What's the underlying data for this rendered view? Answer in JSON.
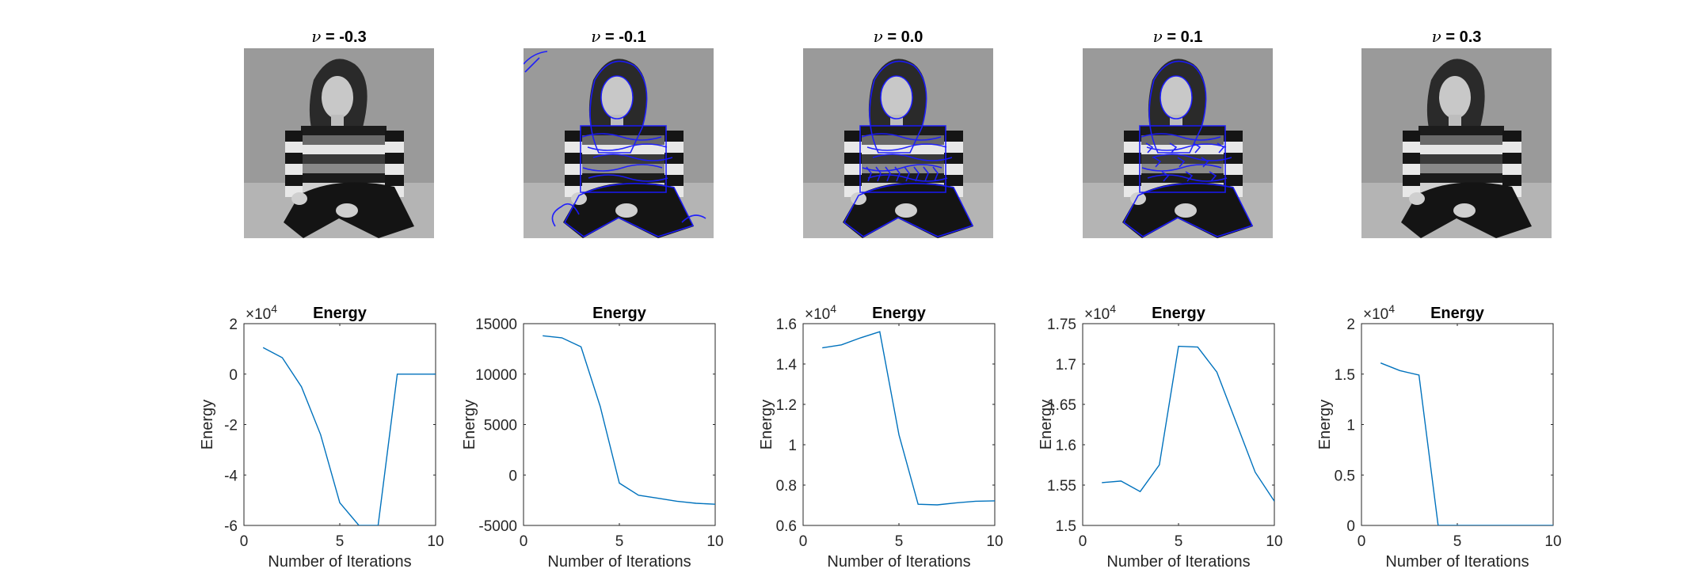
{
  "images": [
    {
      "nu_symbol": "ν",
      "label": " = -0.3"
    },
    {
      "nu_symbol": "ν",
      "label": " = -0.1"
    },
    {
      "nu_symbol": "ν",
      "label": " = 0.0"
    },
    {
      "nu_symbol": "ν",
      "label": " = 0.1"
    },
    {
      "nu_symbol": "ν",
      "label": " = 0.3"
    }
  ],
  "colors": {
    "line": "#0072BD",
    "contour": "#1a1aff",
    "axis": "#262626",
    "image_bg": "#9a9a9a"
  },
  "chart_data": [
    {
      "type": "line",
      "title": "Energy",
      "xlabel": "Number of Iterations",
      "ylabel": "Energy",
      "exponent": "×10",
      "exponent_power": "4",
      "xlim": [
        0,
        10
      ],
      "ylim": [
        -6,
        2
      ],
      "xticks": [
        0,
        5,
        10
      ],
      "yticks": [
        -6,
        -4,
        -2,
        0,
        2
      ],
      "ytick_labels": [
        "-6",
        "-4",
        "-2",
        "0",
        "2"
      ],
      "x": [
        1,
        2,
        3,
        4,
        5,
        6,
        7,
        8,
        9,
        10
      ],
      "values": [
        1.05,
        0.65,
        -0.5,
        -2.4,
        -5.1,
        -6.0,
        -6.0,
        0.0,
        0.0,
        0.0
      ]
    },
    {
      "type": "line",
      "title": "Energy",
      "xlabel": "Number of Iterations",
      "ylabel": "Energy",
      "exponent": "",
      "exponent_power": "",
      "xlim": [
        0,
        10
      ],
      "ylim": [
        -5000,
        15000
      ],
      "xticks": [
        0,
        5,
        10
      ],
      "yticks": [
        -5000,
        0,
        5000,
        10000,
        15000
      ],
      "ytick_labels": [
        "-5000",
        "0",
        "5000",
        "10000",
        "15000"
      ],
      "x": [
        1,
        2,
        3,
        4,
        5,
        6,
        7,
        8,
        9,
        10
      ],
      "values": [
        13800,
        13600,
        12700,
        6800,
        -800,
        -2000,
        -2300,
        -2600,
        -2800,
        -2900
      ]
    },
    {
      "type": "line",
      "title": "Energy",
      "xlabel": "Number of Iterations",
      "ylabel": "Energy",
      "exponent": "×10",
      "exponent_power": "4",
      "xlim": [
        0,
        10
      ],
      "ylim": [
        0.6,
        1.6
      ],
      "xticks": [
        0,
        5,
        10
      ],
      "yticks": [
        0.6,
        0.8,
        1.0,
        1.2,
        1.4,
        1.6
      ],
      "ytick_labels": [
        "0.6",
        "0.8",
        "1",
        "1.2",
        "1.4",
        "1.6"
      ],
      "x": [
        1,
        2,
        3,
        4,
        5,
        6,
        7,
        8,
        9,
        10
      ],
      "values": [
        1.48,
        1.495,
        1.53,
        1.56,
        1.05,
        0.705,
        0.702,
        0.712,
        0.72,
        0.722
      ]
    },
    {
      "type": "line",
      "title": "Energy",
      "xlabel": "Number of Iterations",
      "ylabel": "Energy",
      "exponent": "×10",
      "exponent_power": "4",
      "xlim": [
        0,
        10
      ],
      "ylim": [
        1.5,
        1.75
      ],
      "xticks": [
        0,
        5,
        10
      ],
      "yticks": [
        1.5,
        1.55,
        1.6,
        1.65,
        1.7,
        1.75
      ],
      "ytick_labels": [
        "1.5",
        "1.55",
        "1.6",
        "1.65",
        "1.7",
        "1.75"
      ],
      "x": [
        1,
        2,
        3,
        4,
        5,
        6,
        7,
        8,
        9,
        10
      ],
      "values": [
        1.553,
        1.555,
        1.542,
        1.575,
        1.722,
        1.721,
        1.69,
        1.628,
        1.566,
        1.53
      ]
    },
    {
      "type": "line",
      "title": "Energy",
      "xlabel": "Number of Iterations",
      "ylabel": "Energy",
      "exponent": "×10",
      "exponent_power": "4",
      "xlim": [
        0,
        10
      ],
      "ylim": [
        0,
        2
      ],
      "xticks": [
        0,
        5,
        10
      ],
      "yticks": [
        0,
        0.5,
        1,
        1.5,
        2
      ],
      "ytick_labels": [
        "0",
        "0.5",
        "1",
        "1.5",
        "2"
      ],
      "x": [
        1,
        2,
        3,
        4,
        5,
        6,
        7,
        8,
        9,
        10
      ],
      "values": [
        1.61,
        1.535,
        1.49,
        0.0,
        0.0,
        0.0,
        0.0,
        0.0,
        0.0,
        0.0
      ]
    }
  ]
}
